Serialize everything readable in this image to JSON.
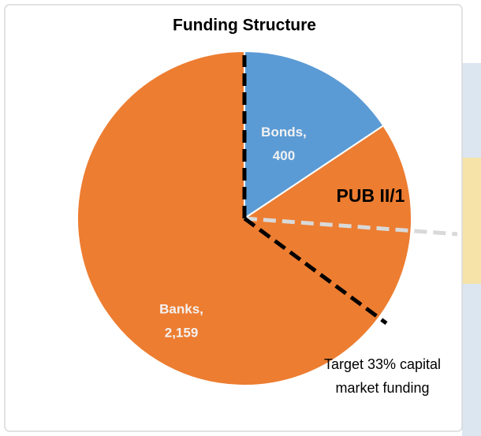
{
  "chart_data": {
    "type": "pie",
    "title": "Funding Structure",
    "categories": [
      "Bonds,",
      "Banks,"
    ],
    "values": [
      400,
      2159
    ],
    "value_labels": [
      "400",
      "2,159"
    ],
    "colors": [
      "#5b9bd5",
      "#ed7d31"
    ],
    "annotations": [
      "PUB II/1",
      "Target 33% capital",
      "market funding"
    ]
  }
}
